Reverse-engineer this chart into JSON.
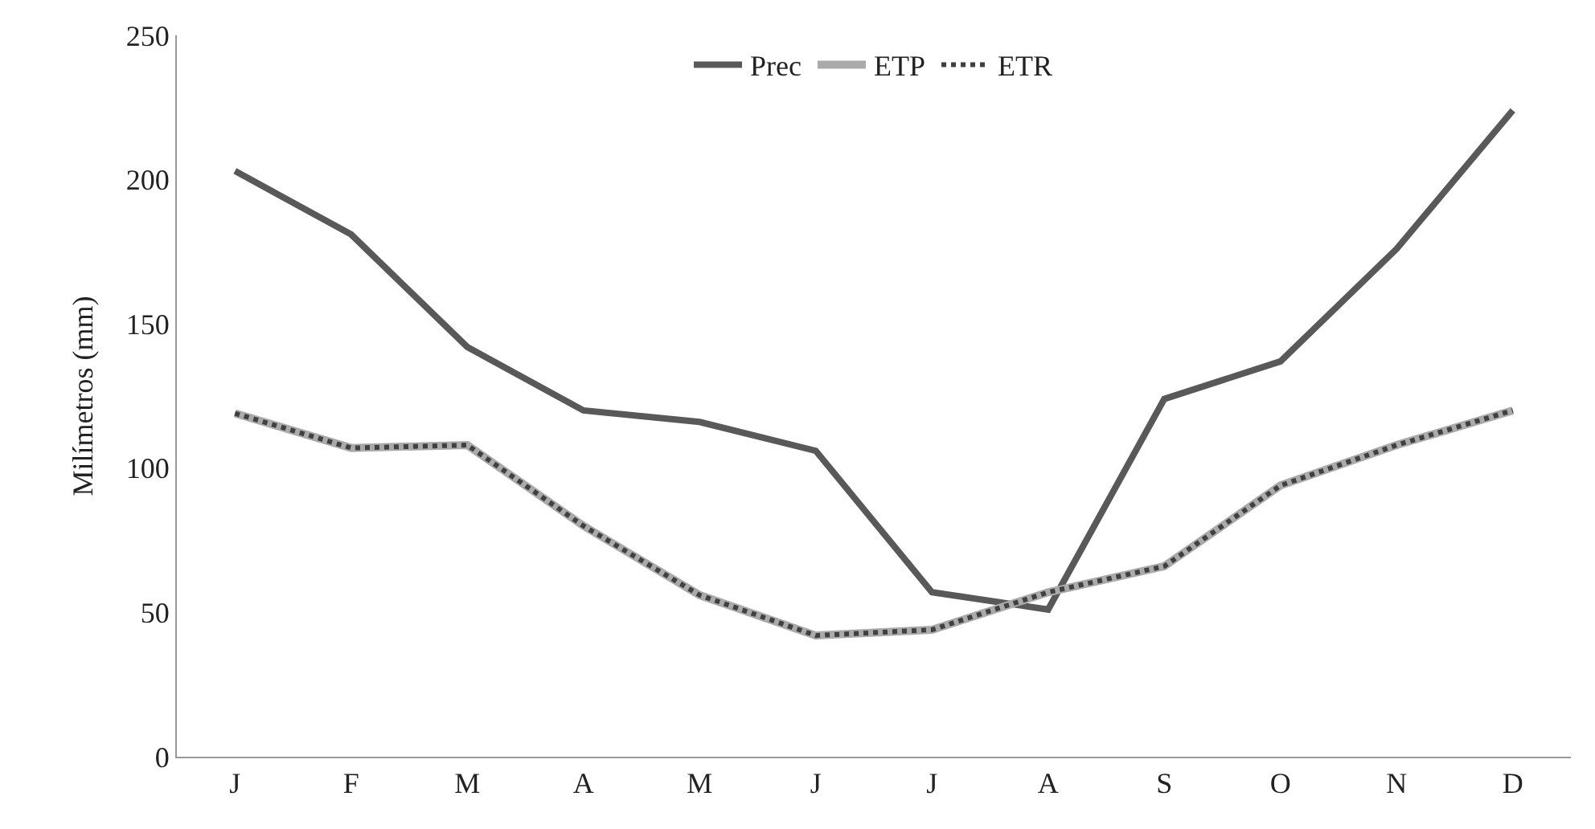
{
  "chart_data": {
    "type": "line",
    "ylabel": "Milímetros (mm)",
    "categories": [
      "J",
      "F",
      "M",
      "A",
      "M",
      "J",
      "J",
      "A",
      "S",
      "O",
      "N",
      "D"
    ],
    "series": [
      {
        "name": "Prec",
        "color": "#595959",
        "values": [
          203,
          181,
          142,
          120,
          116,
          106,
          57,
          51,
          124,
          137,
          176,
          224
        ]
      },
      {
        "name": "ETP",
        "color": "#aaaaaa",
        "values": [
          119,
          107,
          108,
          80,
          56,
          42,
          44,
          57,
          66,
          94,
          108,
          120
        ]
      },
      {
        "name": "ETR",
        "color": "#404040",
        "line_style": "dotted",
        "values": [
          119,
          107,
          108,
          80,
          56,
          42,
          44,
          57,
          66,
          94,
          108,
          120
        ]
      }
    ],
    "ylim": [
      0,
      250
    ],
    "yticks": [
      0,
      50,
      100,
      150,
      200,
      250
    ],
    "legend": "top",
    "marker": "none"
  }
}
